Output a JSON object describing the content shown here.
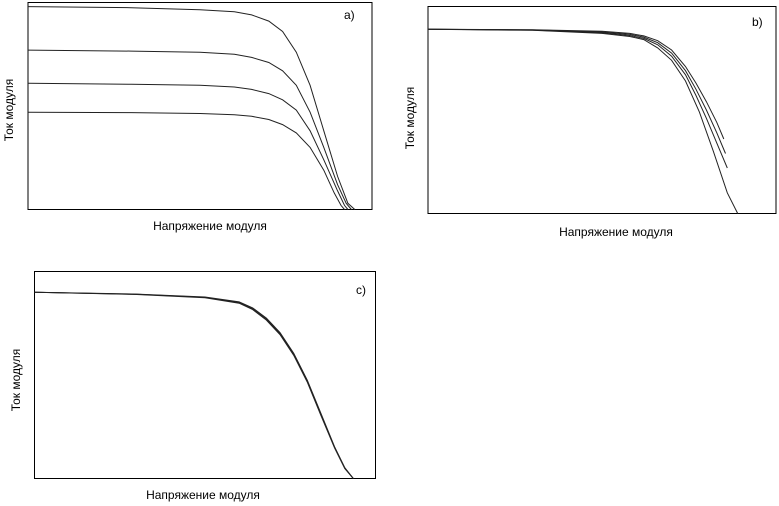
{
  "chart_data": [
    {
      "type": "line",
      "panel_label": "a)",
      "xlabel": "Напряжение модуля",
      "ylabel": "Ток модуля",
      "xlim": [
        0,
        1
      ],
      "ylim": [
        0,
        1
      ],
      "grid": false,
      "series": [
        {
          "x": [
            0,
            0.3,
            0.5,
            0.6,
            0.65,
            0.7,
            0.74,
            0.78,
            0.82,
            0.86,
            0.9,
            0.93,
            0.95
          ],
          "y": [
            0.98,
            0.975,
            0.965,
            0.955,
            0.94,
            0.91,
            0.86,
            0.76,
            0.6,
            0.38,
            0.16,
            0.03,
            0.0
          ]
        },
        {
          "x": [
            0,
            0.3,
            0.5,
            0.6,
            0.65,
            0.7,
            0.74,
            0.78,
            0.82,
            0.86,
            0.9,
            0.925,
            0.94
          ],
          "y": [
            0.77,
            0.765,
            0.76,
            0.75,
            0.735,
            0.71,
            0.67,
            0.6,
            0.47,
            0.3,
            0.12,
            0.03,
            0.0
          ]
        },
        {
          "x": [
            0,
            0.3,
            0.5,
            0.6,
            0.65,
            0.7,
            0.74,
            0.78,
            0.82,
            0.86,
            0.9,
            0.92,
            0.93
          ],
          "y": [
            0.61,
            0.605,
            0.6,
            0.592,
            0.58,
            0.56,
            0.53,
            0.48,
            0.38,
            0.24,
            0.09,
            0.02,
            0.0
          ]
        },
        {
          "x": [
            0,
            0.3,
            0.5,
            0.6,
            0.65,
            0.7,
            0.74,
            0.78,
            0.82,
            0.86,
            0.89,
            0.91,
            0.92
          ],
          "y": [
            0.47,
            0.468,
            0.464,
            0.458,
            0.45,
            0.435,
            0.41,
            0.37,
            0.3,
            0.19,
            0.08,
            0.02,
            0.0
          ]
        }
      ]
    },
    {
      "type": "line",
      "panel_label": "b)",
      "xlabel": "Напряжение модуля",
      "ylabel": "Ток модуля",
      "xlim": [
        0,
        1
      ],
      "ylim": [
        0,
        1
      ],
      "grid": false,
      "series": [
        {
          "x": [
            0,
            0.3,
            0.5,
            0.58,
            0.62,
            0.66,
            0.7,
            0.74,
            0.78,
            0.82,
            0.86,
            0.89
          ],
          "y": [
            0.89,
            0.885,
            0.87,
            0.855,
            0.84,
            0.8,
            0.74,
            0.64,
            0.49,
            0.3,
            0.1,
            0.0
          ]
        },
        {
          "x": [
            0,
            0.3,
            0.5,
            0.58,
            0.62,
            0.66,
            0.7,
            0.74,
            0.77,
            0.8,
            0.83,
            0.86
          ],
          "y": [
            0.89,
            0.886,
            0.874,
            0.86,
            0.846,
            0.815,
            0.76,
            0.67,
            0.57,
            0.46,
            0.34,
            0.22
          ]
        },
        {
          "x": [
            0,
            0.3,
            0.5,
            0.58,
            0.62,
            0.66,
            0.7,
            0.74,
            0.77,
            0.8,
            0.83,
            0.855
          ],
          "y": [
            0.89,
            0.887,
            0.877,
            0.865,
            0.852,
            0.825,
            0.775,
            0.69,
            0.6,
            0.5,
            0.39,
            0.29
          ]
        },
        {
          "x": [
            0,
            0.3,
            0.5,
            0.58,
            0.62,
            0.66,
            0.7,
            0.74,
            0.77,
            0.8,
            0.83,
            0.85
          ],
          "y": [
            0.89,
            0.888,
            0.88,
            0.87,
            0.858,
            0.835,
            0.79,
            0.71,
            0.63,
            0.54,
            0.44,
            0.36
          ]
        }
      ]
    },
    {
      "type": "line",
      "panel_label": "c)",
      "xlabel": "Напряжение модуля",
      "ylabel": "Ток модуля",
      "xlim": [
        0,
        1
      ],
      "ylim": [
        0,
        1
      ],
      "grid": false,
      "series": [
        {
          "x": [
            0,
            0.3,
            0.5,
            0.6,
            0.64,
            0.68,
            0.72,
            0.76,
            0.8,
            0.84,
            0.88,
            0.91,
            0.935
          ],
          "y": [
            0.9,
            0.89,
            0.875,
            0.85,
            0.82,
            0.77,
            0.7,
            0.6,
            0.47,
            0.31,
            0.15,
            0.05,
            0.0
          ]
        },
        {
          "x": [
            0,
            0.3,
            0.5,
            0.6,
            0.64,
            0.68,
            0.72,
            0.76,
            0.8,
            0.84,
            0.88,
            0.91,
            0.935
          ],
          "y": [
            0.9,
            0.891,
            0.877,
            0.853,
            0.824,
            0.775,
            0.705,
            0.605,
            0.475,
            0.315,
            0.153,
            0.052,
            0.0
          ]
        },
        {
          "x": [
            0,
            0.3,
            0.5,
            0.6,
            0.64,
            0.68,
            0.72,
            0.76,
            0.8,
            0.84,
            0.88,
            0.91,
            0.935
          ],
          "y": [
            0.9,
            0.889,
            0.873,
            0.847,
            0.816,
            0.765,
            0.695,
            0.595,
            0.465,
            0.305,
            0.147,
            0.048,
            0.0
          ]
        }
      ]
    }
  ]
}
